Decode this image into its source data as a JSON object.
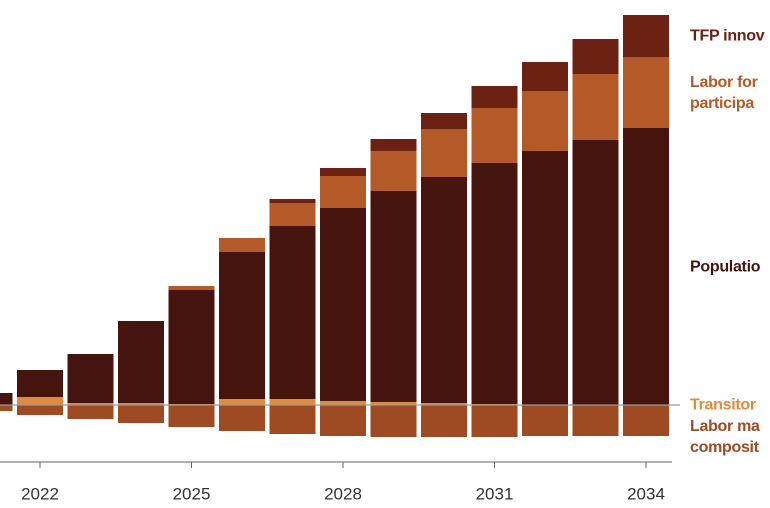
{
  "chart_data": {
    "type": "stacked-bar",
    "categories": [
      null,
      "2022",
      null,
      null,
      "2025",
      null,
      null,
      "2028",
      null,
      null,
      "2031",
      null,
      null,
      "2034"
    ],
    "series": [
      {
        "name": "Transitor",
        "color": "#e08a3c",
        "values": [
          0,
          0.8,
          0.2,
          0.2,
          0.1,
          0.6,
          0.6,
          0.4,
          0.3,
          0.2,
          0.1,
          0,
          0,
          0
        ]
      },
      {
        "name": "Populatio",
        "color": "#45140f",
        "values": [
          1.2,
          2.7,
          4.9,
          8.2,
          11.4,
          14.7,
          17.3,
          19.3,
          21.1,
          22.6,
          24.1,
          25.4,
          26.5,
          27.7
        ]
      },
      {
        "name": "Labor for\nparticipa",
        "color": "#b35a28",
        "values": [
          0,
          0,
          0,
          0,
          0.4,
          1.4,
          2.3,
          3.2,
          4.0,
          4.8,
          5.5,
          6.0,
          6.6,
          7.1
        ]
      },
      {
        "name": "TFP innov",
        "color": "#6b2212",
        "values": [
          0,
          0,
          0,
          0,
          0,
          0,
          0.4,
          0.8,
          1.2,
          1.6,
          2.2,
          2.9,
          3.5,
          4.2
        ]
      },
      {
        "name": "Labor ma\ncomposit",
        "color": "#9e4a22",
        "values": [
          -0.6,
          -1.0,
          -1.4,
          -1.8,
          -2.2,
          -2.6,
          -2.9,
          -3.1,
          -3.2,
          -3.2,
          -3.2,
          -3.1,
          -3.1,
          -3.1
        ]
      }
    ]
  }
}
